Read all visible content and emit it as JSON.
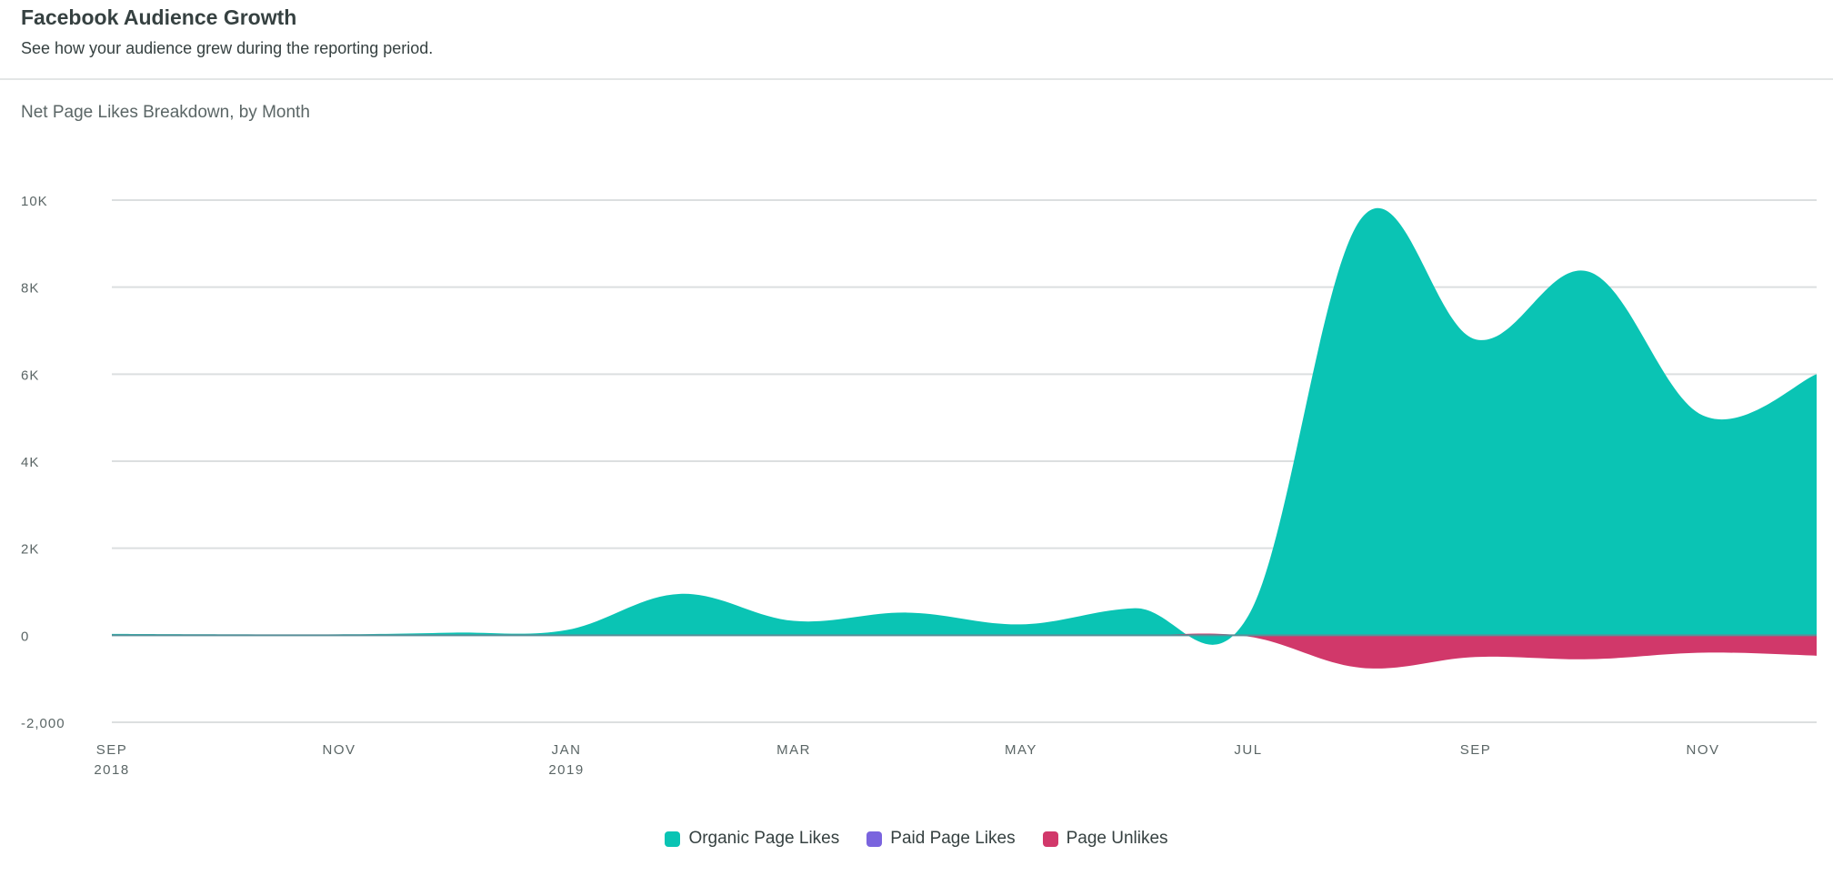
{
  "header": {
    "title": "Facebook Audience Growth",
    "subtitle": "See how your audience grew during the reporting period."
  },
  "chart_data": {
    "type": "area",
    "title": "Net Page Likes Breakdown, by Month",
    "xlabel": "",
    "ylabel": "",
    "x": [
      "2018-09",
      "2018-10",
      "2018-11",
      "2018-12",
      "2019-01",
      "2019-02",
      "2019-03",
      "2019-04",
      "2019-05",
      "2019-06",
      "2019-07",
      "2019-08",
      "2019-09",
      "2019-10",
      "2019-11",
      "2019-12"
    ],
    "x_tick_labels": [
      {
        "x": "2018-09",
        "label": "SEP",
        "sublabel": "2018"
      },
      {
        "x": "2018-11",
        "label": "NOV",
        "sublabel": ""
      },
      {
        "x": "2019-01",
        "label": "JAN",
        "sublabel": "2019"
      },
      {
        "x": "2019-03",
        "label": "MAR",
        "sublabel": ""
      },
      {
        "x": "2019-05",
        "label": "MAY",
        "sublabel": ""
      },
      {
        "x": "2019-07",
        "label": "JUL",
        "sublabel": ""
      },
      {
        "x": "2019-09",
        "label": "SEP",
        "sublabel": ""
      },
      {
        "x": "2019-11",
        "label": "NOV",
        "sublabel": ""
      }
    ],
    "y_ticks": [
      {
        "value": 10000,
        "label": "10K"
      },
      {
        "value": 8000,
        "label": "8K"
      },
      {
        "value": 6000,
        "label": "6K"
      },
      {
        "value": 4000,
        "label": "4K"
      },
      {
        "value": 2000,
        "label": "2K"
      },
      {
        "value": 0,
        "label": "0"
      },
      {
        "value": -2000,
        "label": "-2,000"
      }
    ],
    "ylim": [
      -2000,
      10000
    ],
    "grid": true,
    "legend_position": "bottom-center",
    "series": [
      {
        "name": "Organic Page Likes",
        "color": "#0ac4b4",
        "values": [
          30,
          20,
          20,
          60,
          120,
          950,
          330,
          520,
          250,
          620,
          450,
          9600,
          6800,
          8350,
          5050,
          6000
        ]
      },
      {
        "name": "Paid Page Likes",
        "color": "#7a64de",
        "values": [
          0,
          0,
          0,
          0,
          0,
          0,
          0,
          0,
          0,
          0,
          0,
          0,
          0,
          0,
          0,
          0
        ]
      },
      {
        "name": "Page Unlikes",
        "color": "#d1386a",
        "values": [
          0,
          0,
          0,
          0,
          0,
          0,
          0,
          0,
          0,
          0,
          -30,
          -750,
          -500,
          -550,
          -400,
          -470
        ]
      }
    ]
  }
}
